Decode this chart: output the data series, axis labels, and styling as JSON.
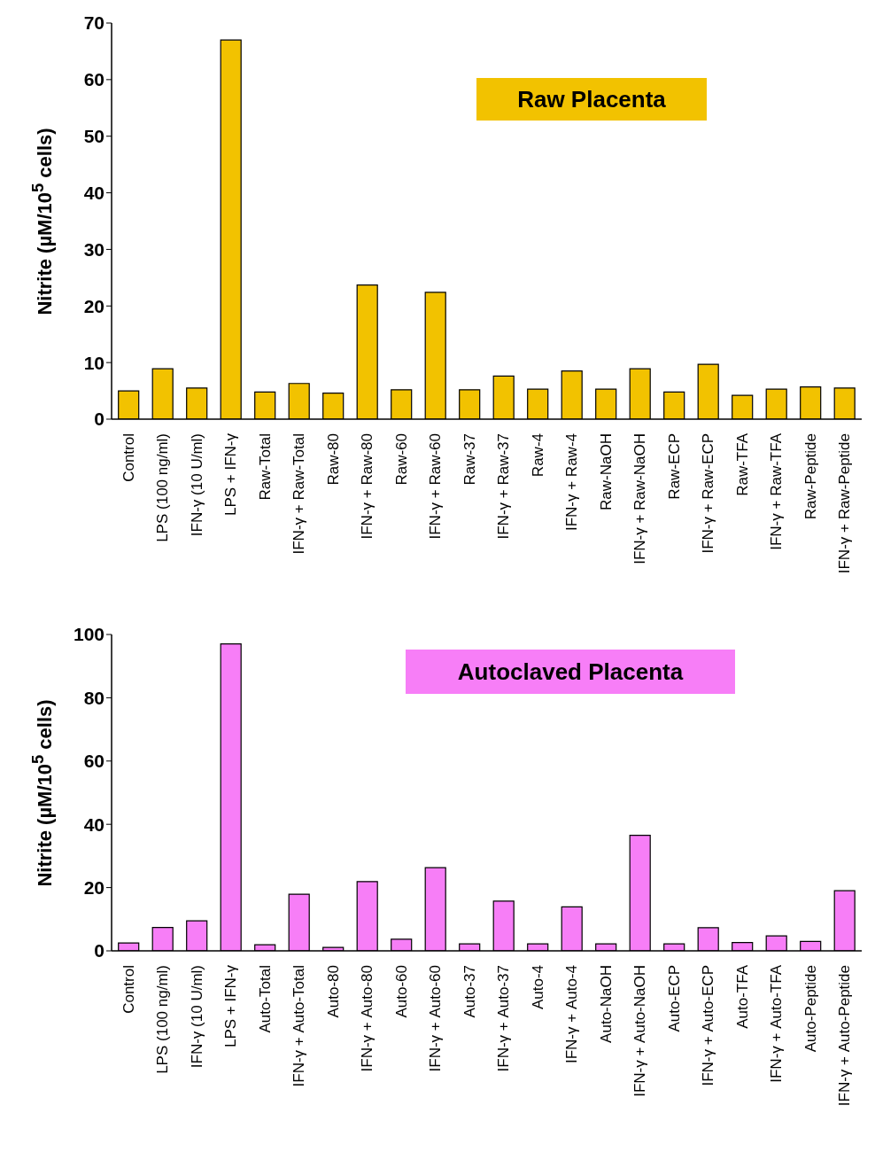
{
  "chart_data": [
    {
      "type": "bar",
      "title": "Raw Placenta",
      "ylabel": "Nitrite (µM/10$^{5}$ cells)",
      "color": "#f2c200",
      "categories": [
        "Control",
        "LPS (100 ng/ml)",
        "IFN-γ (10 U/ml)",
        "LPS + IFN-γ",
        "Raw-Total",
        "IFN-γ + Raw-Total",
        "Raw-80",
        "IFN-γ + Raw-80",
        "Raw-60",
        "IFN-γ + Raw-60",
        "Raw-37",
        "IFN-γ + Raw-37",
        "Raw-4",
        "IFN-γ + Raw-4",
        "Raw-NaOH",
        "IFN-γ + Raw-NaOH",
        "Raw-ECP",
        "IFN-γ + Raw-ECP",
        "Raw-TFA",
        "IFN-γ + Raw-TFA",
        "Raw-Peptide",
        "IFN-γ + Raw-Peptide"
      ],
      "values": [
        5.0,
        8.9,
        5.5,
        67.0,
        4.8,
        6.3,
        4.6,
        23.7,
        5.2,
        22.4,
        5.2,
        7.6,
        5.3,
        8.5,
        5.3,
        8.9,
        4.8,
        9.7,
        4.2,
        5.3,
        5.7,
        5.5
      ],
      "ylim": [
        0,
        70
      ],
      "yticks": [
        0,
        10,
        20,
        30,
        40,
        50,
        60,
        70
      ]
    },
    {
      "type": "bar",
      "title": "Autoclaved Placenta",
      "ylabel": "Nitrite (µM/10$^{5}$ cells)",
      "color": "#f77ef7",
      "categories": [
        "Control",
        "LPS (100 ng/ml)",
        "IFN-γ (10 U/ml)",
        "LPS + IFN-γ",
        "Auto-Total",
        "IFN-γ + Auto-Total",
        "Auto-80",
        "IFN-γ + Auto-80",
        "Auto-60",
        "IFN-γ + Auto-60",
        "Auto-37",
        "IFN-γ + Auto-37",
        "Auto-4",
        "IFN-γ + Auto-4",
        "Auto-NaOH",
        "IFN-γ + Auto-NaOH",
        "Auto-ECP",
        "IFN-γ + Auto-ECP",
        "Auto-TFA",
        "IFN-γ + Auto-TFA",
        "Auto-Peptide",
        "IFN-γ + Auto-Peptide"
      ],
      "values": [
        2.5,
        7.4,
        9.5,
        97.0,
        1.9,
        17.9,
        1.1,
        21.9,
        3.7,
        26.3,
        2.2,
        15.7,
        2.2,
        13.9,
        2.2,
        36.5,
        2.2,
        7.3,
        2.6,
        4.7,
        3.0,
        19.0
      ],
      "ylim": [
        0,
        100
      ],
      "yticks": [
        0,
        20,
        40,
        60,
        80,
        100
      ]
    }
  ]
}
